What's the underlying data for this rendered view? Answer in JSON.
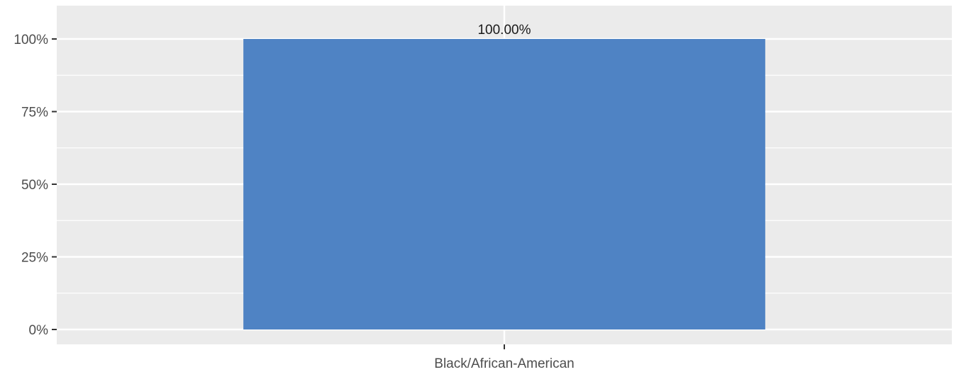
{
  "chart_data": {
    "type": "bar",
    "categories": [
      "Black/African-American"
    ],
    "values": [
      100
    ],
    "data_labels": [
      "100.00%"
    ],
    "title": "",
    "xlabel": "",
    "ylabel": "",
    "ylim": [
      0,
      110
    ],
    "y_ticks": [
      0,
      25,
      50,
      75,
      100
    ],
    "y_tick_labels": [
      "0%",
      "25%",
      "50%",
      "75%",
      "100%"
    ],
    "grid": true,
    "legend": "none",
    "colors": {
      "bar": "#4f83c4",
      "panel_background": "#ebebeb",
      "grid": "#ffffff",
      "axis_text": "#4d4d4d",
      "tick_mark": "#333333"
    }
  }
}
